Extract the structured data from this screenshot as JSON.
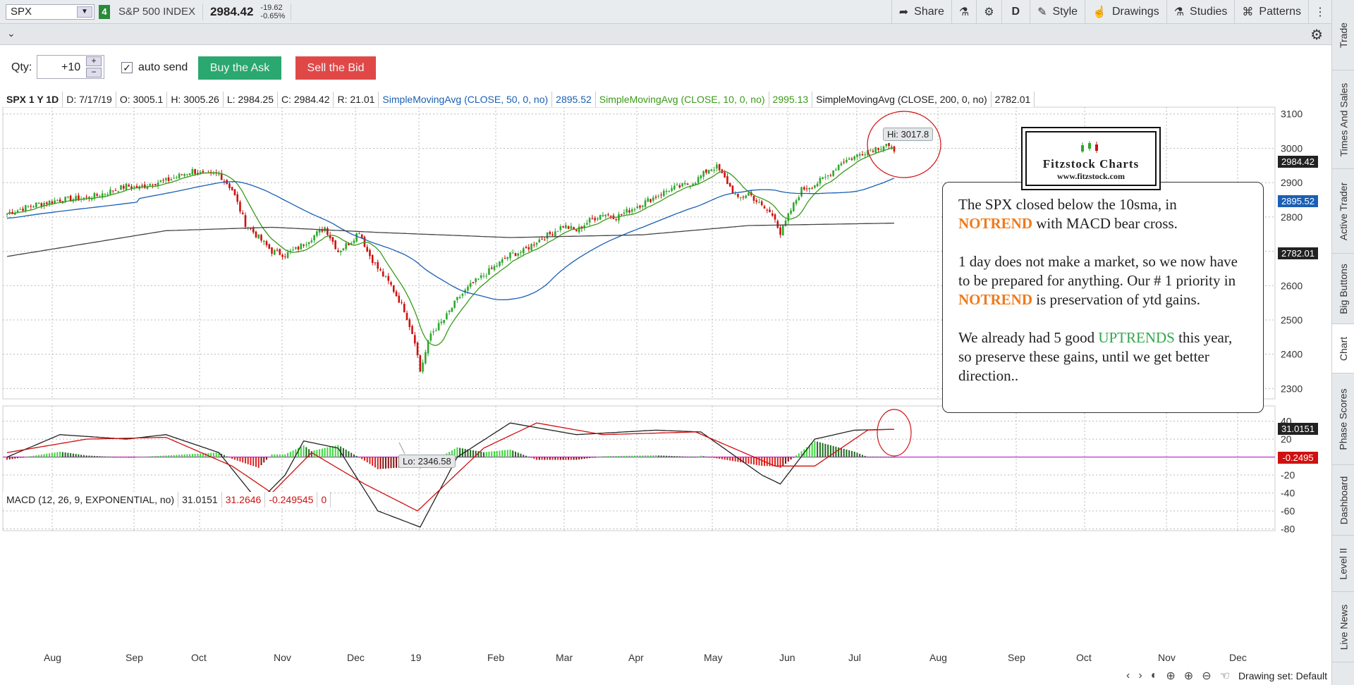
{
  "topbar": {
    "symbol": "SPX",
    "link_badge": "4",
    "name": "S&P 500 INDEX",
    "last": "2984.42",
    "net_change": "-19.62",
    "pct_change": "-0.65%",
    "buttons": [
      {
        "label": "Share",
        "icon": "share-icon"
      },
      {
        "label": "",
        "icon": "flask-icon"
      },
      {
        "label": "",
        "icon": "gear-icon"
      },
      {
        "label": "D",
        "icon": ""
      },
      {
        "label": "Style",
        "icon": "style-icon"
      },
      {
        "label": "Drawings",
        "icon": "drawing-hand-icon"
      },
      {
        "label": "Studies",
        "icon": "studies-icon"
      },
      {
        "label": "Patterns",
        "icon": "patterns-icon"
      }
    ]
  },
  "order": {
    "qty_label": "Qty:",
    "qty_value": "+10",
    "autosend_label": "auto send",
    "buy_label": "Buy the Ask",
    "sell_label": "Sell the Bid"
  },
  "price_header": {
    "title": "SPX 1 Y 1D",
    "date": "D: 7/17/19",
    "open": "O: 3005.1",
    "high": "H: 3005.26",
    "low": "L: 2984.25",
    "close": "C: 2984.42",
    "range": "R: 21.01",
    "sma50_label": "SimpleMovingAvg (CLOSE, 50, 0, no)",
    "sma50_value": "2895.52",
    "sma10_label": "SimpleMovingAvg (CLOSE, 10, 0, no)",
    "sma10_value": "2995.13",
    "sma200_label": "SimpleMovingAvg (CLOSE, 200, 0, no)",
    "sma200_value": "2782.01"
  },
  "macd_header": {
    "label": "MACD (12, 26, 9, EXPONENTIAL, no)",
    "value": "31.0151",
    "avg": "31.2646",
    "diff": "-0.249545",
    "zero": "0"
  },
  "annotations": {
    "hi_tag": "Hi: 3017.8",
    "lo_tag": "Lo: 2346.58",
    "price_last": "2984.42",
    "price_sma50": "2895.52",
    "price_sma200": "2782.01",
    "macd_value": "31.0151",
    "macd_diff": "-0.2495"
  },
  "note": {
    "p1_a": "The SPX closed below the 10sma, in ",
    "p1_kw": "NOTREND",
    "p1_b": " with MACD bear cross.",
    "p2_a": "1 day does not make a market, so we now have to be prepared for anything.   Our # 1 priority in ",
    "p2_kw": "NOTREND",
    "p2_b": " is preservation of ytd gains.",
    "p3_a": "We already had 5 good ",
    "p3_kw": "UPTRENDS",
    "p3_b": " this year, so preserve these gains, until we get better direction.."
  },
  "logo": {
    "title": "Fitzstock Charts",
    "url": "www.fitzstock.com"
  },
  "side_tabs": [
    "Trade",
    "Times And Sales",
    "Active Trader",
    "Big Buttons",
    "Chart",
    "Phase Scores",
    "Dashboard",
    "Level II",
    "Live News"
  ],
  "footer": {
    "drawing_set": "Drawing set: Default"
  },
  "colors": {
    "up_candle": "#2ea82e",
    "down_candle": "#d01010",
    "sma10": "#3a9a1a",
    "sma50": "#1a5fb4",
    "sma200": "#444444",
    "macd_line": "#222222",
    "macd_signal": "#d01010",
    "zero_line": "#c040d0"
  },
  "chart_data": {
    "type": "candlestick",
    "title": "SPX 1 Y 1D",
    "x_labels": [
      "Aug",
      "Sep",
      "Oct",
      "Nov",
      "Dec",
      "19",
      "Feb",
      "Mar",
      "Apr",
      "May",
      "Jun",
      "Jul",
      "Aug",
      "Sep",
      "Oct",
      "Nov",
      "Dec"
    ],
    "y_ticks": [
      3100,
      3000,
      2900,
      2800,
      2700,
      2600,
      2500,
      2400,
      2300
    ],
    "ylim": [
      2270,
      3120
    ],
    "macd_y_ticks": [
      40,
      20,
      0,
      -20,
      -40,
      -60,
      -80
    ],
    "macd_ylim": [
      -82,
      46
    ],
    "close_path": [
      [
        0,
        2810
      ],
      [
        10,
        2835
      ],
      [
        20,
        2850
      ],
      [
        30,
        2855
      ],
      [
        35,
        2865
      ],
      [
        45,
        2890
      ],
      [
        50,
        2885
      ],
      [
        55,
        2900
      ],
      [
        60,
        2905
      ],
      [
        65,
        2920
      ],
      [
        70,
        2935
      ],
      [
        75,
        2920
      ],
      [
        80,
        2925
      ],
      [
        85,
        2880
      ],
      [
        90,
        2780
      ],
      [
        95,
        2740
      ],
      [
        100,
        2700
      ],
      [
        105,
        2690
      ],
      [
        110,
        2710
      ],
      [
        115,
        2740
      ],
      [
        120,
        2770
      ],
      [
        125,
        2700
      ],
      [
        130,
        2730
      ],
      [
        133,
        2760
      ],
      [
        136,
        2700
      ],
      [
        140,
        2650
      ],
      [
        145,
        2600
      ],
      [
        150,
        2530
      ],
      [
        154,
        2440
      ],
      [
        156,
        2351
      ],
      [
        160,
        2460
      ],
      [
        165,
        2500
      ],
      [
        170,
        2560
      ],
      [
        175,
        2600
      ],
      [
        180,
        2630
      ],
      [
        185,
        2660
      ],
      [
        190,
        2690
      ],
      [
        195,
        2700
      ],
      [
        200,
        2730
      ],
      [
        205,
        2750
      ],
      [
        210,
        2775
      ],
      [
        215,
        2760
      ],
      [
        220,
        2790
      ],
      [
        225,
        2810
      ],
      [
        230,
        2800
      ],
      [
        235,
        2820
      ],
      [
        240,
        2840
      ],
      [
        245,
        2860
      ],
      [
        250,
        2880
      ],
      [
        255,
        2890
      ],
      [
        260,
        2905
      ],
      [
        265,
        2940
      ],
      [
        268,
        2945
      ],
      [
        272,
        2900
      ],
      [
        276,
        2850
      ],
      [
        280,
        2870
      ],
      [
        285,
        2830
      ],
      [
        290,
        2800
      ],
      [
        292,
        2750
      ],
      [
        296,
        2820
      ],
      [
        300,
        2880
      ],
      [
        305,
        2895
      ],
      [
        310,
        2920
      ],
      [
        315,
        2960
      ],
      [
        320,
        2975
      ],
      [
        325,
        2995
      ],
      [
        330,
        3005
      ],
      [
        332,
        3014
      ],
      [
        335,
        2984
      ]
    ],
    "sma200_path": [
      [
        0,
        2685
      ],
      [
        60,
        2760
      ],
      [
        100,
        2770
      ],
      [
        140,
        2755
      ],
      [
        190,
        2740
      ],
      [
        240,
        2748
      ],
      [
        280,
        2775
      ],
      [
        335,
        2782
      ]
    ],
    "macd_line_path": [
      [
        0,
        0
      ],
      [
        20,
        25
      ],
      [
        45,
        20
      ],
      [
        60,
        25
      ],
      [
        80,
        5
      ],
      [
        95,
        -50
      ],
      [
        105,
        -20
      ],
      [
        112,
        18
      ],
      [
        125,
        10
      ],
      [
        140,
        -60
      ],
      [
        156,
        -78
      ],
      [
        170,
        0
      ],
      [
        190,
        38
      ],
      [
        215,
        25
      ],
      [
        245,
        30
      ],
      [
        262,
        28
      ],
      [
        285,
        -20
      ],
      [
        292,
        -30
      ],
      [
        305,
        20
      ],
      [
        320,
        30
      ],
      [
        335,
        31
      ]
    ],
    "macd_signal_path": [
      [
        0,
        5
      ],
      [
        30,
        20
      ],
      [
        60,
        22
      ],
      [
        85,
        -10
      ],
      [
        100,
        -40
      ],
      [
        115,
        5
      ],
      [
        135,
        -30
      ],
      [
        155,
        -60
      ],
      [
        180,
        10
      ],
      [
        200,
        38
      ],
      [
        225,
        25
      ],
      [
        260,
        28
      ],
      [
        290,
        -10
      ],
      [
        305,
        -10
      ],
      [
        325,
        30
      ],
      [
        335,
        31
      ]
    ]
  }
}
